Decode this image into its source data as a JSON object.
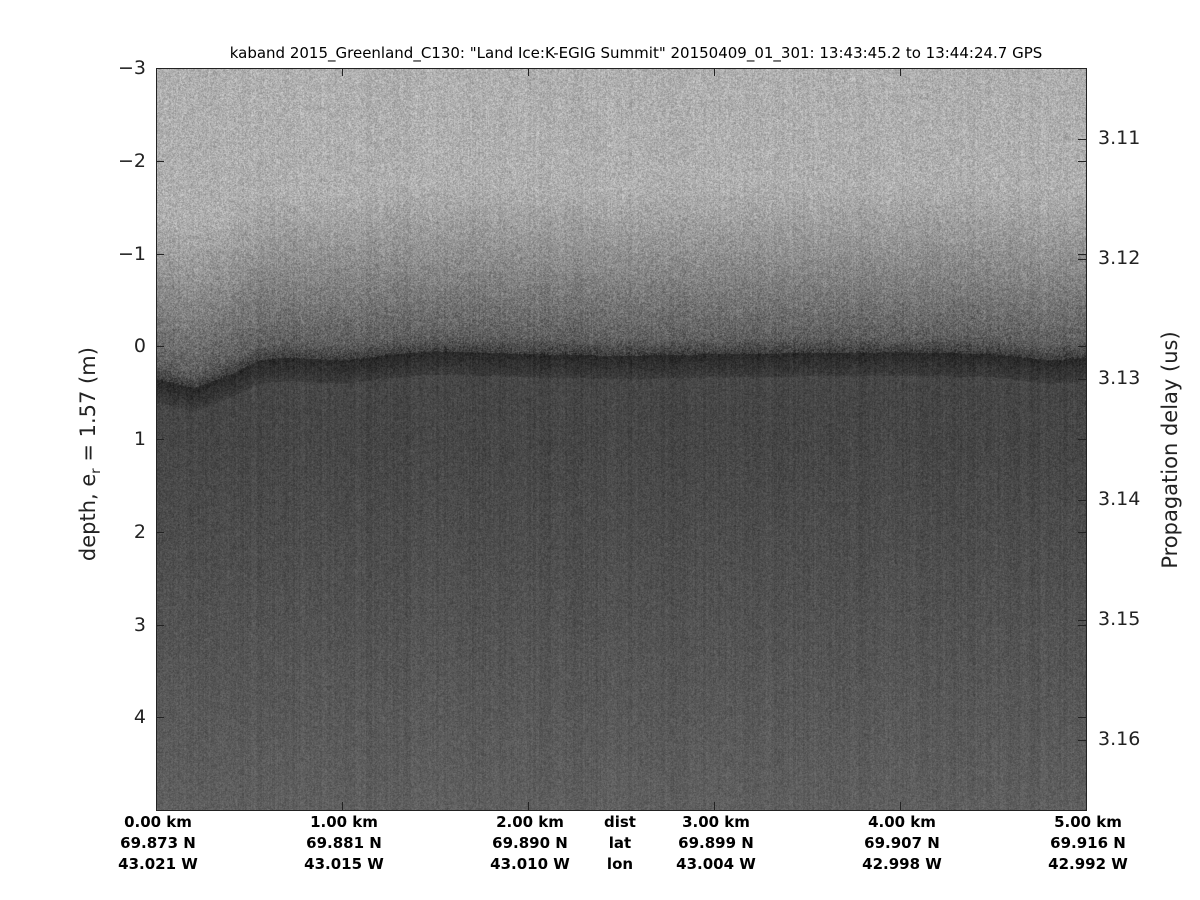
{
  "chart_data": {
    "type": "heatmap",
    "title": "kaband 2015_Greenland_C130: \"Land Ice:K-EGIG Summit\"  20150409_01_301: 13:43:45.2 to 13:44:24.7 GPS",
    "ylabel": "depth, e_r = 1.57 (m)",
    "ylabel_main": "depth, e",
    "ylabel_sub": "r",
    "ylabel_tail": " = 1.57 (m)",
    "y2label": "Propagation delay (us)",
    "ylim": [
      -3,
      5
    ],
    "y_ticks": [
      -3,
      -2,
      -1,
      0,
      1,
      2,
      3,
      4
    ],
    "y2_ticks": [
      "3.11",
      "3.12",
      "3.13",
      "3.14",
      "3.15",
      "3.16"
    ],
    "y2_tick_depths": [
      -2.23,
      -0.94,
      0.35,
      1.66,
      2.95,
      4.24
    ],
    "xlim_km": [
      0,
      5
    ],
    "colormap": "gray",
    "grid": false,
    "x_rows": {
      "dist": {
        "label": "dist",
        "ticks": [
          "0.00 km",
          "1.00 km",
          "2.00 km",
          "3.00 km",
          "4.00 km",
          "5.00 km"
        ]
      },
      "lat": {
        "label": "lat",
        "ticks": [
          "69.873 N",
          "69.881 N",
          "69.890 N",
          "69.899 N",
          "69.907 N",
          "69.916 N"
        ]
      },
      "lon": {
        "label": "lon",
        "ticks": [
          "43.021 W",
          "43.015 W",
          "43.010 W",
          "43.004 W",
          "42.998 W",
          "42.992 W"
        ]
      }
    },
    "surface_depth_m": {
      "x_km": [
        0,
        0.2,
        0.4,
        0.55,
        0.7,
        1.0,
        1.3,
        1.5,
        2.0,
        2.5,
        3.0,
        3.5,
        4.0,
        4.5,
        4.8,
        5.0
      ],
      "y_m": [
        0.35,
        0.45,
        0.3,
        0.15,
        0.12,
        0.15,
        0.08,
        0.05,
        0.08,
        0.1,
        0.08,
        0.07,
        0.06,
        0.08,
        0.15,
        0.12
      ]
    }
  }
}
